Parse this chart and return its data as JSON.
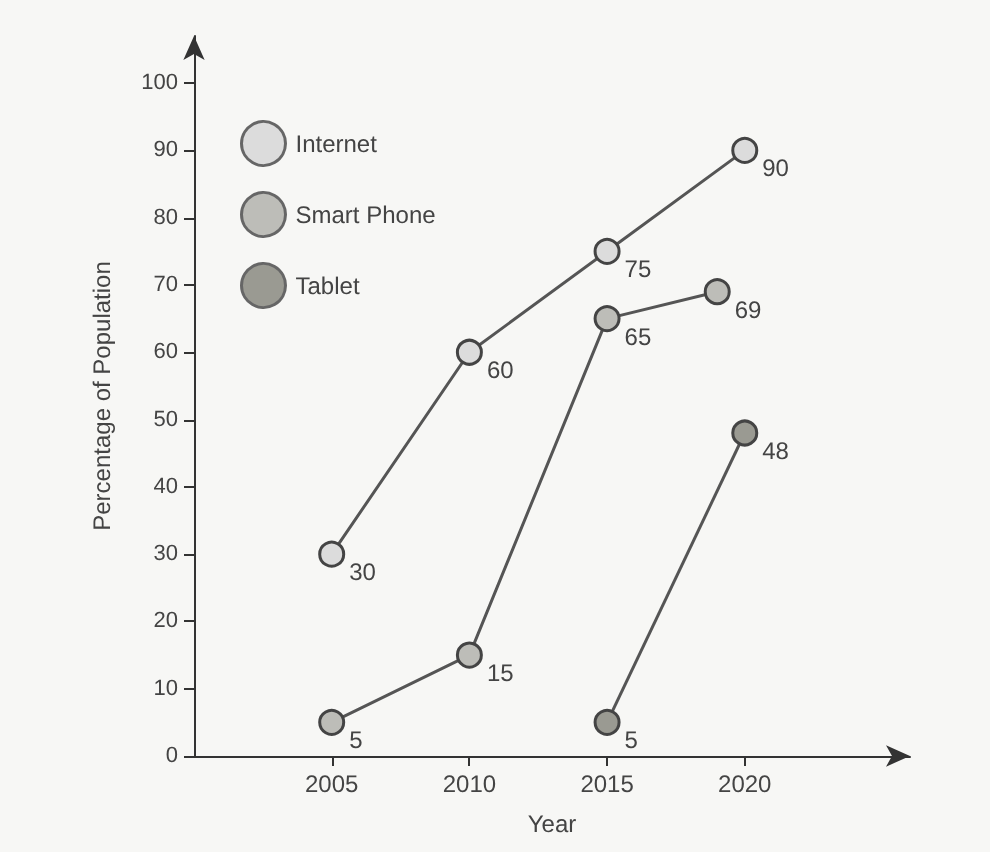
{
  "chart_data": {
    "type": "line",
    "xlabel": "Year",
    "ylabel": "Percentage of Population",
    "xlim": [
      2000,
      2026
    ],
    "xticks": [
      2005,
      2010,
      2015,
      2020
    ],
    "ylim": [
      0,
      107
    ],
    "yticks": [
      0,
      10,
      20,
      30,
      40,
      50,
      60,
      70,
      80,
      90,
      100
    ],
    "grid": false,
    "legend": "top left",
    "marker": "circle",
    "line_style": "solid",
    "data_labels": true,
    "series": [
      {
        "name": "Internet",
        "color": "#dcdcdc",
        "x": [
          2005,
          2010,
          2015,
          2020
        ],
        "values": [
          30,
          60,
          75,
          90
        ]
      },
      {
        "name": "Smart Phone",
        "color": "#bdbdb8",
        "x": [
          2005,
          2010,
          2015,
          2019
        ],
        "values": [
          5,
          15,
          65,
          69
        ]
      },
      {
        "name": "Tablet",
        "color": "#9a9a92",
        "x": [
          2015,
          2020
        ],
        "values": [
          5,
          48
        ]
      }
    ]
  }
}
